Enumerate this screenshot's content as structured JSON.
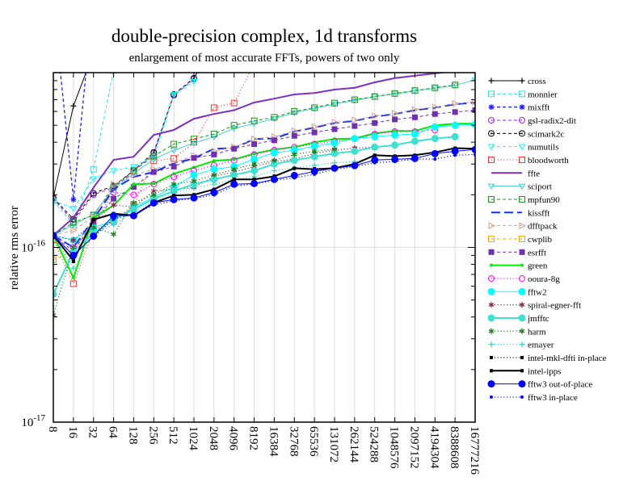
{
  "chart_data": {
    "type": "line",
    "title": "double-precision complex, 1d transforms",
    "subtitle": "enlargement of most accurate FFTs, powers of two only",
    "xlabel": "",
    "ylabel": "relative rms error",
    "yscale": "log",
    "ylim": [
      1e-17,
      1e-15
    ],
    "value_multiplier": 1e-16,
    "yticks": [
      {
        "base": "10",
        "exp": "-17",
        "value": 1e-17
      },
      {
        "base": "10",
        "exp": "-16",
        "value": 1e-16
      }
    ],
    "grid": true,
    "legend_placement": "right-outside",
    "categories": [
      "8",
      "16",
      "32",
      "64",
      "128",
      "256",
      "512",
      "1024",
      "2048",
      "4096",
      "8192",
      "16384",
      "32768",
      "65536",
      "131072",
      "262144",
      "524288",
      "1048576",
      "2097152",
      "4194304",
      "8388608",
      "16777216"
    ],
    "series": [
      {
        "name": "cross",
        "color": "#000000",
        "line": "solid",
        "width": 1,
        "marker": "plus",
        "values": [
          1.92,
          6.45,
          13,
          null,
          null,
          null,
          null,
          null,
          null,
          null,
          null,
          null,
          null,
          null,
          null,
          null,
          null,
          null,
          null,
          null,
          null,
          null
        ]
      },
      {
        "name": "monnier",
        "color": "#40d8d8",
        "line": "dashed",
        "width": 1,
        "marker": "open-square",
        "values": [
          1.85,
          1.35,
          2.8,
          10.3,
          null,
          null,
          null,
          null,
          null,
          null,
          null,
          null,
          null,
          null,
          null,
          null,
          null,
          null,
          null,
          null,
          null,
          null
        ]
      },
      {
        "name": "mixfft",
        "color": "#2020ff",
        "line": "dashed",
        "width": 1.3,
        "marker": "asterisk",
        "values": [
          25,
          1.88,
          27,
          null,
          null,
          null,
          null,
          null,
          null,
          null,
          null,
          null,
          null,
          null,
          null,
          null,
          null,
          null,
          null,
          null,
          null,
          null
        ]
      },
      {
        "name": "gsl-radix2-dit",
        "color": "#a020f0",
        "line": "dashed",
        "width": 1,
        "marker": "open-circle",
        "values": [
          1.9,
          1.4,
          2.0,
          2.2,
          2.7,
          3.45,
          7.4,
          9.2,
          15,
          null,
          null,
          null,
          null,
          null,
          null,
          null,
          null,
          null,
          null,
          null,
          null,
          null
        ]
      },
      {
        "name": "scimark2c",
        "color": "#000000",
        "line": "dashed",
        "width": 1,
        "marker": "circle-dot",
        "values": [
          1.92,
          1.45,
          2.04,
          2.25,
          2.75,
          3.5,
          7.5,
          9.3,
          15,
          null,
          null,
          null,
          null,
          null,
          null,
          null,
          null,
          null,
          null,
          null,
          null,
          null
        ]
      },
      {
        "name": "numutils",
        "color": "#00ffff",
        "line": "dashed",
        "width": 1,
        "marker": "tri-down",
        "values": [
          1.85,
          1.67,
          2.47,
          2.75,
          2.9,
          3.3,
          7.5,
          8.9,
          15,
          null,
          null,
          null,
          null,
          null,
          null,
          null,
          null,
          null,
          null,
          null,
          null,
          null
        ]
      },
      {
        "name": "bloodworth",
        "color": "#ff3030",
        "line": "dotted",
        "width": 1,
        "marker": "open-square",
        "values": [
          1.11,
          0.62,
          1.25,
          1.42,
          1.75,
          3.13,
          3.23,
          4.0,
          6.3,
          6.7,
          11.2,
          null,
          null,
          null,
          null,
          null,
          null,
          null,
          null,
          null,
          null,
          null
        ]
      },
      {
        "name": "ffte",
        "color": "#7f2fc0",
        "line": "solid",
        "width": 2,
        "marker": "none",
        "values": [
          1.17,
          1.48,
          2.2,
          3.17,
          3.3,
          4.4,
          4.7,
          5.45,
          5.8,
          6.1,
          6.75,
          7.1,
          7.5,
          7.65,
          8.0,
          8.2,
          8.8,
          9.3,
          9.6,
          9.9,
          10.2,
          10.5
        ]
      },
      {
        "name": "sciport",
        "color": "#40d0d0",
        "line": "solid",
        "width": 1,
        "marker": "tri-down",
        "values": [
          1.17,
          1.35,
          1.55,
          2.15,
          2.65,
          3.2,
          3.6,
          3.95,
          4.3,
          4.8,
          5.1,
          5.45,
          5.9,
          6.25,
          6.6,
          6.95,
          7.3,
          7.55,
          7.85,
          8.15,
          8.45,
          9.1
        ]
      },
      {
        "name": "mpfun90",
        "color": "#209020",
        "line": "dashed",
        "width": 1,
        "marker": "open-square",
        "values": [
          1.17,
          1.39,
          1.53,
          2.22,
          2.75,
          3.33,
          3.9,
          4.17,
          4.45,
          5.0,
          5.3,
          5.55,
          6.0,
          6.3,
          6.7,
          7.0,
          7.3,
          7.6,
          7.9,
          8.2,
          8.5,
          null
        ]
      },
      {
        "name": "kissfft",
        "color": "#1030ff",
        "line": "longdash",
        "width": 2,
        "marker": "none",
        "values": [
          1.17,
          1.0,
          1.45,
          2.15,
          2.53,
          2.7,
          3.03,
          3.23,
          3.67,
          3.7,
          4.17,
          4.2,
          4.6,
          4.85,
          5.15,
          5.3,
          5.6,
          5.8,
          6.1,
          6.3,
          6.6,
          6.75
        ]
      },
      {
        "name": "dfftpack",
        "color": "#d0a090",
        "line": "dashed",
        "width": 1,
        "marker": "tri-right",
        "values": [
          1.17,
          1.25,
          1.5,
          2.3,
          2.6,
          2.8,
          3.05,
          3.35,
          3.55,
          3.75,
          4.17,
          4.3,
          4.65,
          4.9,
          5.2,
          5.35,
          5.65,
          5.85,
          6.15,
          6.35,
          6.65,
          6.8
        ]
      },
      {
        "name": "cwplib",
        "color": "#ffa500",
        "line": "dashed",
        "width": 1,
        "marker": "open-square",
        "values": [
          0.85,
          0.95,
          1.25,
          null,
          null,
          null,
          null,
          null,
          null,
          null,
          null,
          null,
          null,
          null,
          null,
          null,
          null,
          null,
          null,
          null,
          null,
          null
        ]
      },
      {
        "name": "esrfft",
        "color": "#7030b0",
        "line": "dashed",
        "width": 1,
        "marker": "filled-square",
        "values": [
          1.17,
          0.95,
          1.4,
          1.9,
          2.22,
          2.7,
          2.9,
          3.25,
          3.4,
          3.67,
          3.9,
          4.1,
          4.35,
          4.55,
          4.75,
          4.95,
          5.15,
          5.4,
          5.55,
          5.8,
          5.95,
          6.1
        ]
      },
      {
        "name": "green",
        "color": "#00ee00",
        "line": "solid",
        "width": 2,
        "marker": "dot",
        "values": [
          1.17,
          0.67,
          1.48,
          1.74,
          2.3,
          2.32,
          2.64,
          2.87,
          3.13,
          3.19,
          3.44,
          3.63,
          3.75,
          3.99,
          4.17,
          4.2,
          4.5,
          4.64,
          4.64,
          5.0,
          5.1,
          5.1
        ]
      },
      {
        "name": "ooura-8g",
        "color": "#ff00ff",
        "line": "dotted",
        "width": 1.2,
        "marker": "open-circle",
        "values": [
          1.17,
          1.0,
          1.35,
          2.06,
          2.0,
          2.3,
          2.53,
          2.75,
          2.95,
          3.15,
          3.4,
          3.6,
          3.75,
          3.9,
          4.05,
          4.2,
          4.45,
          4.6,
          4.6,
          4.7,
          null,
          null
        ]
      },
      {
        "name": "fftw2",
        "color": "#00ffff",
        "line": "solid",
        "width": 1,
        "marker": "filled-circle",
        "values": [
          1.17,
          1.1,
          1.3,
          1.42,
          1.7,
          1.94,
          2.22,
          2.6,
          2.8,
          2.9,
          3.2,
          3.48,
          3.6,
          3.8,
          3.95,
          4.2,
          4.3,
          4.4,
          4.45,
          4.9,
          5.0,
          5.05
        ]
      },
      {
        "name": "spiral-egner-fft",
        "color": "#803050",
        "line": "dotted",
        "width": 1.2,
        "marker": "star",
        "values": [
          1.17,
          1.1,
          1.4,
          1.75,
          1.7,
          2.1,
          2.15,
          2.2,
          2.55,
          2.7,
          2.9,
          3.1,
          3.2,
          3.45,
          3.6,
          3.7,
          3.75,
          null,
          null,
          null,
          null,
          null
        ]
      },
      {
        "name": "jmfftc",
        "color": "#40e0d0",
        "line": "solid",
        "width": 2,
        "marker": "filled-circle",
        "values": [
          0.54,
          0.95,
          1.2,
          1.45,
          1.65,
          1.9,
          2.1,
          2.3,
          2.45,
          2.6,
          2.75,
          3.0,
          3.15,
          3.3,
          3.45,
          3.55,
          3.75,
          3.85,
          4.05,
          4.2,
          4.3,
          null
        ]
      },
      {
        "name": "harm",
        "color": "#208020",
        "line": "dotted",
        "width": 1.2,
        "marker": "star",
        "values": [
          0.41,
          1.0,
          1.3,
          1.19,
          1.8,
          2.0,
          2.3,
          2.4,
          2.6,
          2.8,
          3.0,
          3.15,
          3.4,
          3.55,
          3.65,
          null,
          null,
          null,
          null,
          null,
          null,
          null
        ]
      },
      {
        "name": "emayer",
        "color": "#40d0c0",
        "line": "dotted",
        "width": 1.2,
        "marker": "plus",
        "values": [
          1.17,
          0.76,
          1.2,
          1.35,
          1.6,
          1.85,
          2.05,
          2.2,
          2.3,
          2.45,
          2.55,
          2.75,
          2.85,
          2.95,
          3.05,
          3.1,
          null,
          null,
          null,
          null,
          null,
          null
        ]
      },
      {
        "name": "intel-mkl-dfti in-place",
        "color": "#000000",
        "line": "dotted",
        "width": 1.2,
        "marker": "small-square",
        "values": [
          1.17,
          0.83,
          1.45,
          1.56,
          1.53,
          1.82,
          1.97,
          2.0,
          2.14,
          2.44,
          2.46,
          2.56,
          2.83,
          2.82,
          2.85,
          3.0,
          3.35,
          3.33,
          3.36,
          3.5,
          3.68,
          3.67
        ]
      },
      {
        "name": "intel-ipps",
        "color": "#000000",
        "line": "solid",
        "width": 2,
        "marker": "small-square",
        "values": [
          1.17,
          0.84,
          1.44,
          1.56,
          1.52,
          1.8,
          1.98,
          2.0,
          2.15,
          2.45,
          2.45,
          2.55,
          2.84,
          2.8,
          2.84,
          3.0,
          3.37,
          3.33,
          3.37,
          3.5,
          3.7,
          3.67
        ]
      },
      {
        "name": "fftw3 out-of-place",
        "color": "#0000ff",
        "line": "solid",
        "width": 1,
        "marker": "filled-circle",
        "values": [
          1.17,
          0.9,
          1.16,
          1.52,
          1.52,
          1.8,
          1.88,
          1.92,
          2.06,
          2.3,
          2.32,
          2.45,
          2.58,
          2.72,
          2.84,
          2.94,
          3.16,
          3.19,
          3.23,
          3.44,
          3.55,
          3.63
        ]
      },
      {
        "name": "fftw3 in-place",
        "color": "#0000ff",
        "line": "dotted",
        "width": 1.2,
        "marker": "dot",
        "values": [
          1.17,
          0.9,
          1.15,
          1.45,
          1.55,
          1.75,
          1.85,
          1.9,
          2.0,
          2.25,
          2.3,
          2.42,
          2.5,
          2.62,
          2.8,
          2.9,
          3.05,
          3.1,
          3.2,
          3.2,
          3.37,
          3.4
        ]
      }
    ]
  }
}
